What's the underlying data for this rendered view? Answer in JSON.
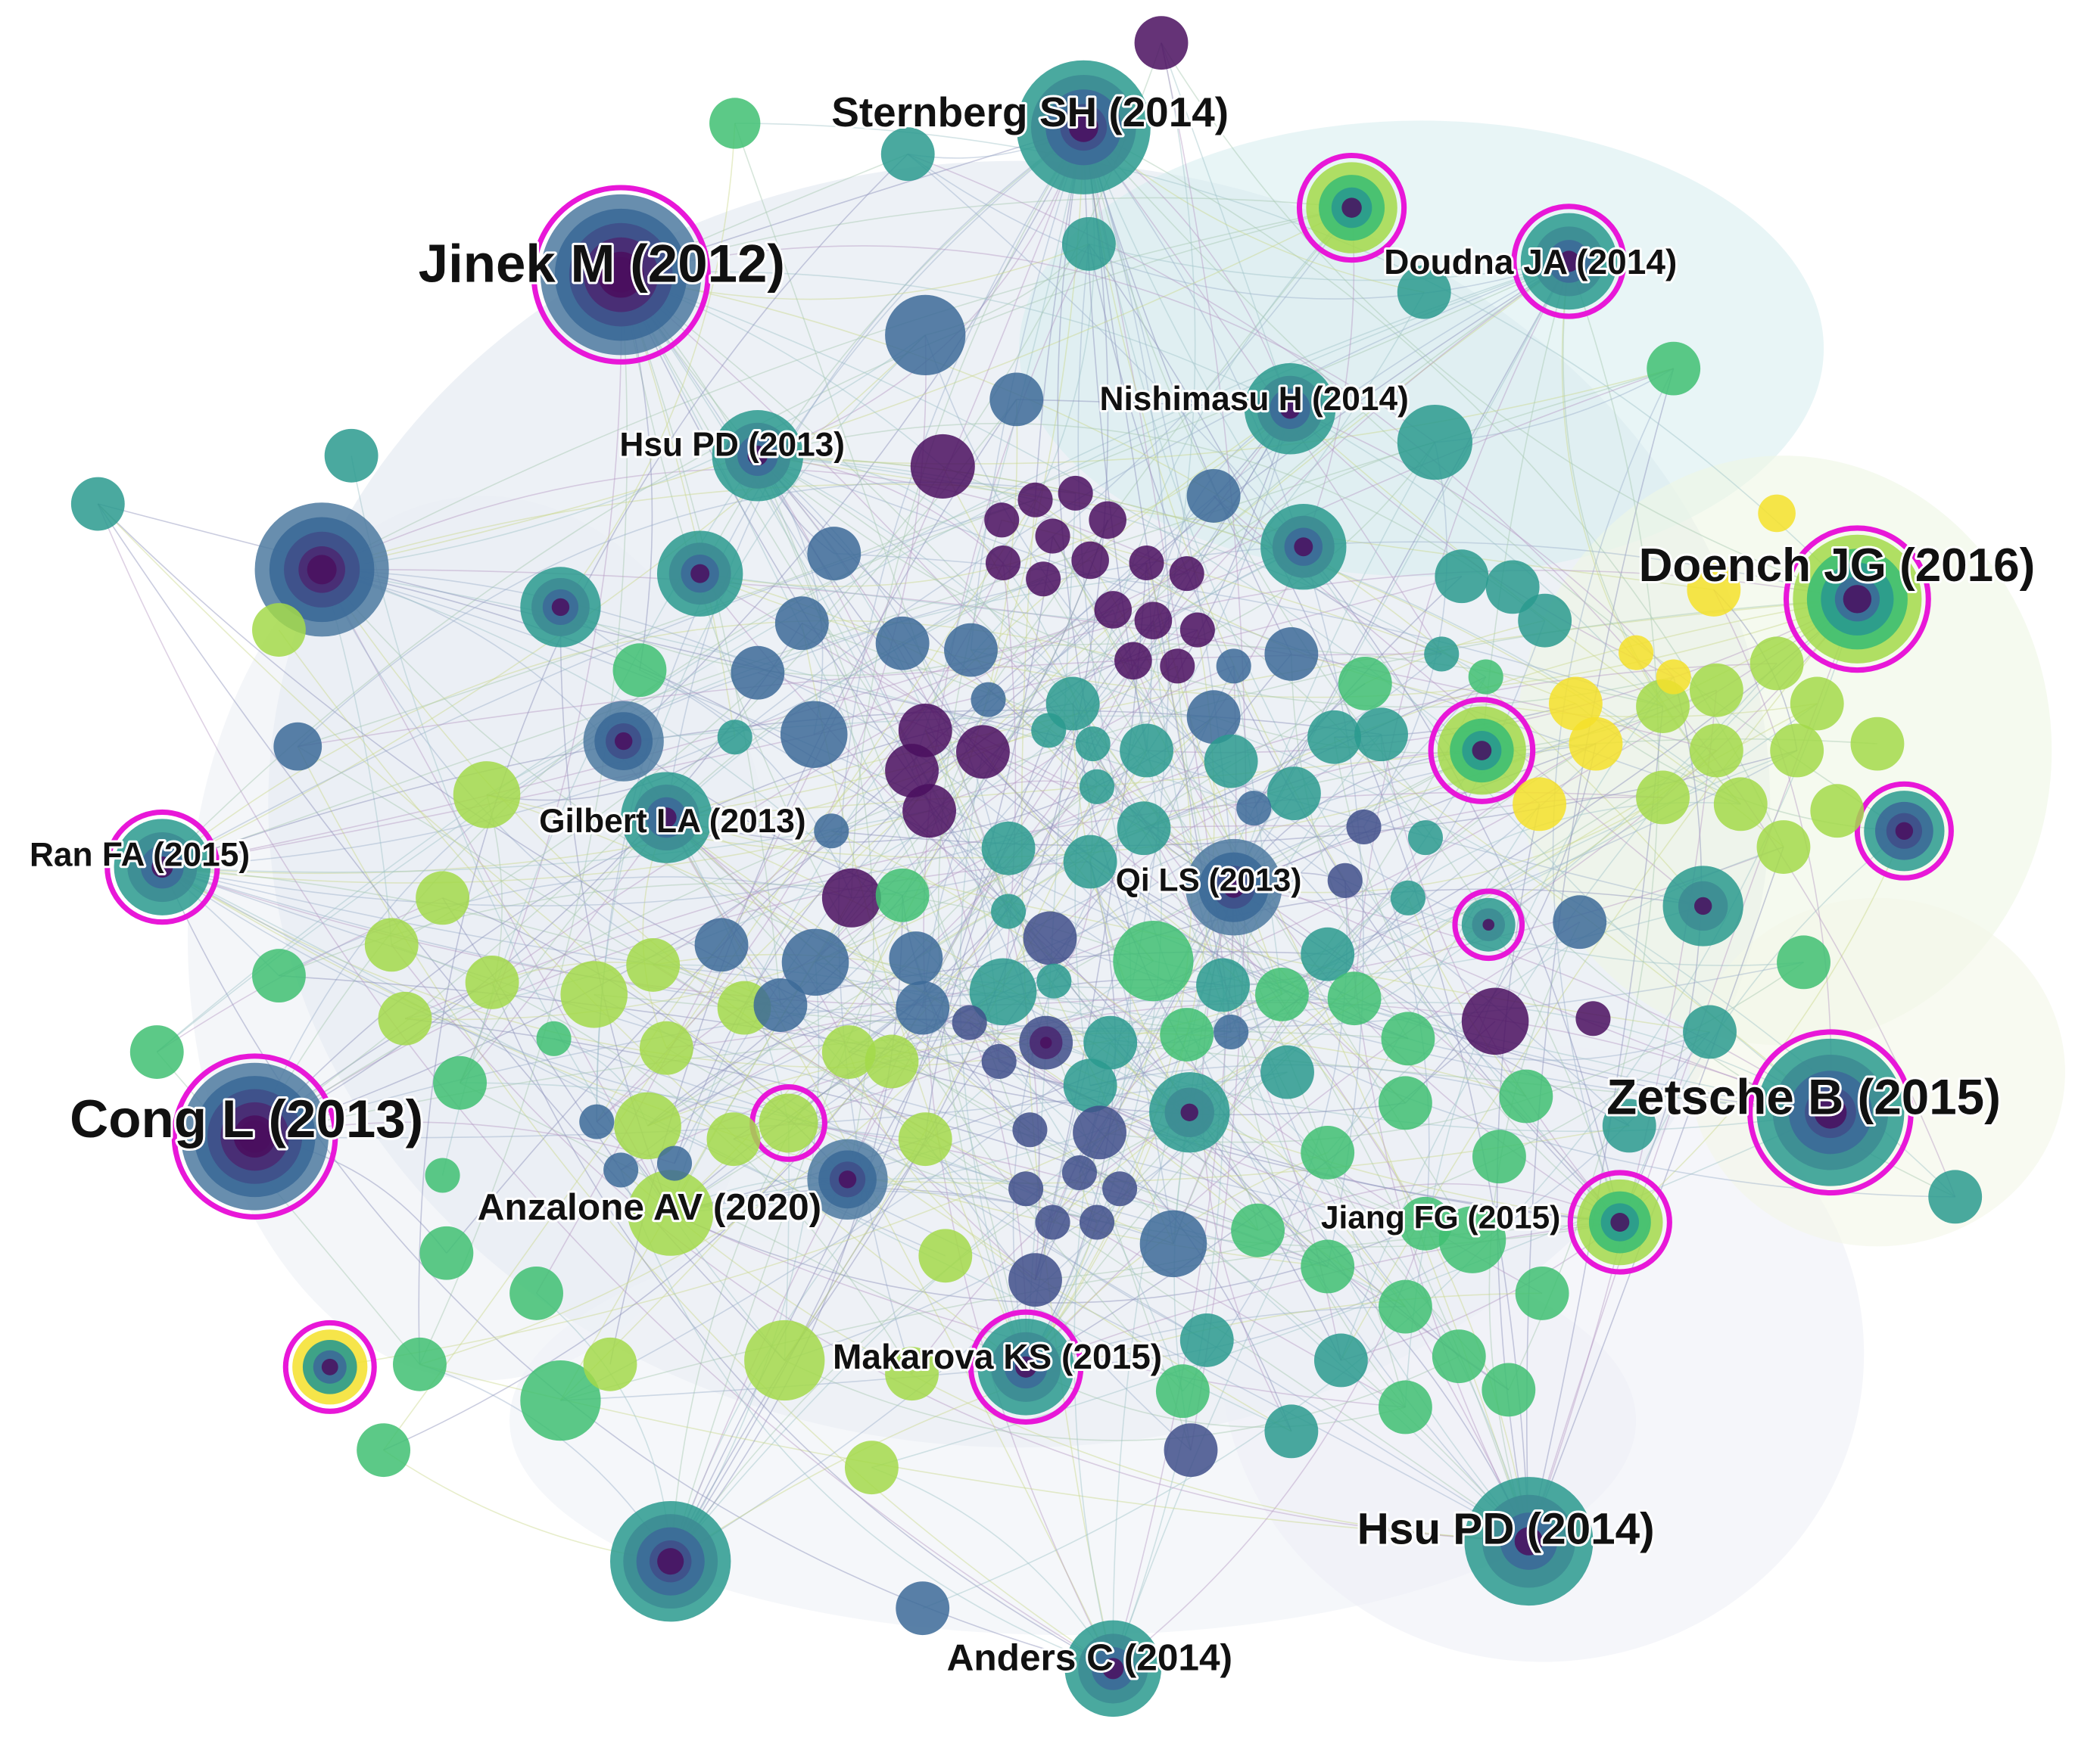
{
  "diagram": {
    "type": "co-citation-network",
    "colors": {
      "purple": "#4a0f5f",
      "indigo": "#3f4f8a",
      "blue": "#3c6a98",
      "teal": "#2a9a8e",
      "green": "#3fbf72",
      "lime": "#a3d94a",
      "yellow": "#f5e12a",
      "burst_ring": "#e817d8"
    },
    "labeled_nodes": [
      {
        "id": "sternberg",
        "label": "Sternberg SH (2014)"
      },
      {
        "id": "jinek",
        "label": "Jinek M (2012)"
      },
      {
        "id": "doudna",
        "label": "Doudna JA (2014)"
      },
      {
        "id": "nishimasu",
        "label": "Nishimasu H (2014)"
      },
      {
        "id": "hsu2013",
        "label": "Hsu PD (2013)"
      },
      {
        "id": "doench",
        "label": "Doench JG (2016)"
      },
      {
        "id": "gilbert",
        "label": "Gilbert LA (2013)"
      },
      {
        "id": "ranfa",
        "label": "Ran FA (2015)"
      },
      {
        "id": "qils",
        "label": "Qi LS (2013)"
      },
      {
        "id": "cong",
        "label": "Cong L (2013)"
      },
      {
        "id": "zetsche",
        "label": "Zetsche B (2015)"
      },
      {
        "id": "anzalone",
        "label": "Anzalone AV (2020)"
      },
      {
        "id": "jiang",
        "label": "Jiang FG (2015)"
      },
      {
        "id": "makarova",
        "label": "Makarova KS (2015)"
      },
      {
        "id": "hsu2014",
        "label": "Hsu PD (2014)"
      },
      {
        "id": "anders",
        "label": "Anders C (2014)"
      }
    ]
  }
}
